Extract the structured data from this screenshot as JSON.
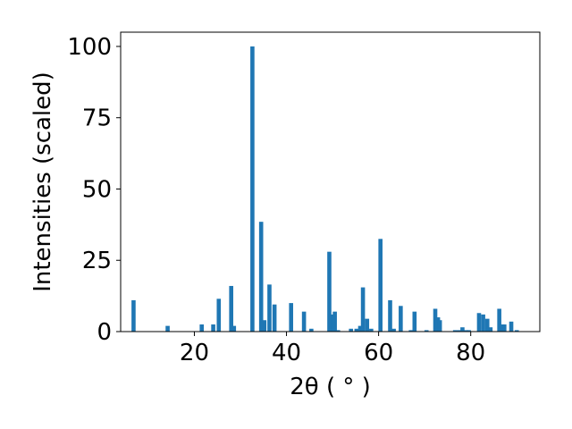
{
  "chart_data": {
    "type": "bar",
    "xlabel": "2θ ( ° )",
    "ylabel": "Intensities (scaled)",
    "xlim": [
      4,
      95
    ],
    "ylim": [
      0,
      105
    ],
    "xticks": [
      20,
      40,
      60,
      80
    ],
    "yticks": [
      0,
      25,
      50,
      75,
      100
    ],
    "bar_color": "#1f77b4",
    "grid": false,
    "points": [
      {
        "x": 6.8,
        "y": 11
      },
      {
        "x": 14.2,
        "y": 2
      },
      {
        "x": 21.6,
        "y": 2.5
      },
      {
        "x": 24.1,
        "y": 2.5
      },
      {
        "x": 25.3,
        "y": 11.5
      },
      {
        "x": 28.0,
        "y": 16
      },
      {
        "x": 28.6,
        "y": 2
      },
      {
        "x": 32.6,
        "y": 100
      },
      {
        "x": 34.5,
        "y": 38.5
      },
      {
        "x": 35.2,
        "y": 4
      },
      {
        "x": 36.3,
        "y": 16.5
      },
      {
        "x": 37.4,
        "y": 9.5
      },
      {
        "x": 41.0,
        "y": 10
      },
      {
        "x": 43.8,
        "y": 7
      },
      {
        "x": 45.4,
        "y": 1
      },
      {
        "x": 49.3,
        "y": 28
      },
      {
        "x": 50.1,
        "y": 6
      },
      {
        "x": 50.5,
        "y": 7
      },
      {
        "x": 51.2,
        "y": 0.5
      },
      {
        "x": 54.0,
        "y": 1
      },
      {
        "x": 55.2,
        "y": 1
      },
      {
        "x": 56.0,
        "y": 2
      },
      {
        "x": 56.6,
        "y": 15.5
      },
      {
        "x": 57.5,
        "y": 4.5
      },
      {
        "x": 58.4,
        "y": 1
      },
      {
        "x": 60.4,
        "y": 32.5
      },
      {
        "x": 62.5,
        "y": 11
      },
      {
        "x": 63.3,
        "y": 1
      },
      {
        "x": 64.8,
        "y": 9
      },
      {
        "x": 67.0,
        "y": 0.5
      },
      {
        "x": 67.8,
        "y": 7
      },
      {
        "x": 70.4,
        "y": 0.5
      },
      {
        "x": 72.3,
        "y": 8
      },
      {
        "x": 72.9,
        "y": 5
      },
      {
        "x": 73.3,
        "y": 4
      },
      {
        "x": 76.6,
        "y": 0.5
      },
      {
        "x": 77.5,
        "y": 0.5
      },
      {
        "x": 78.2,
        "y": 1.5
      },
      {
        "x": 79.0,
        "y": 0.5
      },
      {
        "x": 79.6,
        "y": 0.5
      },
      {
        "x": 81.8,
        "y": 6.5
      },
      {
        "x": 82.7,
        "y": 6
      },
      {
        "x": 83.6,
        "y": 4.5
      },
      {
        "x": 84.3,
        "y": 1.5
      },
      {
        "x": 86.2,
        "y": 8
      },
      {
        "x": 86.8,
        "y": 2.5
      },
      {
        "x": 87.3,
        "y": 2.5
      },
      {
        "x": 88.8,
        "y": 3.5
      },
      {
        "x": 90.0,
        "y": 0.5
      }
    ]
  }
}
